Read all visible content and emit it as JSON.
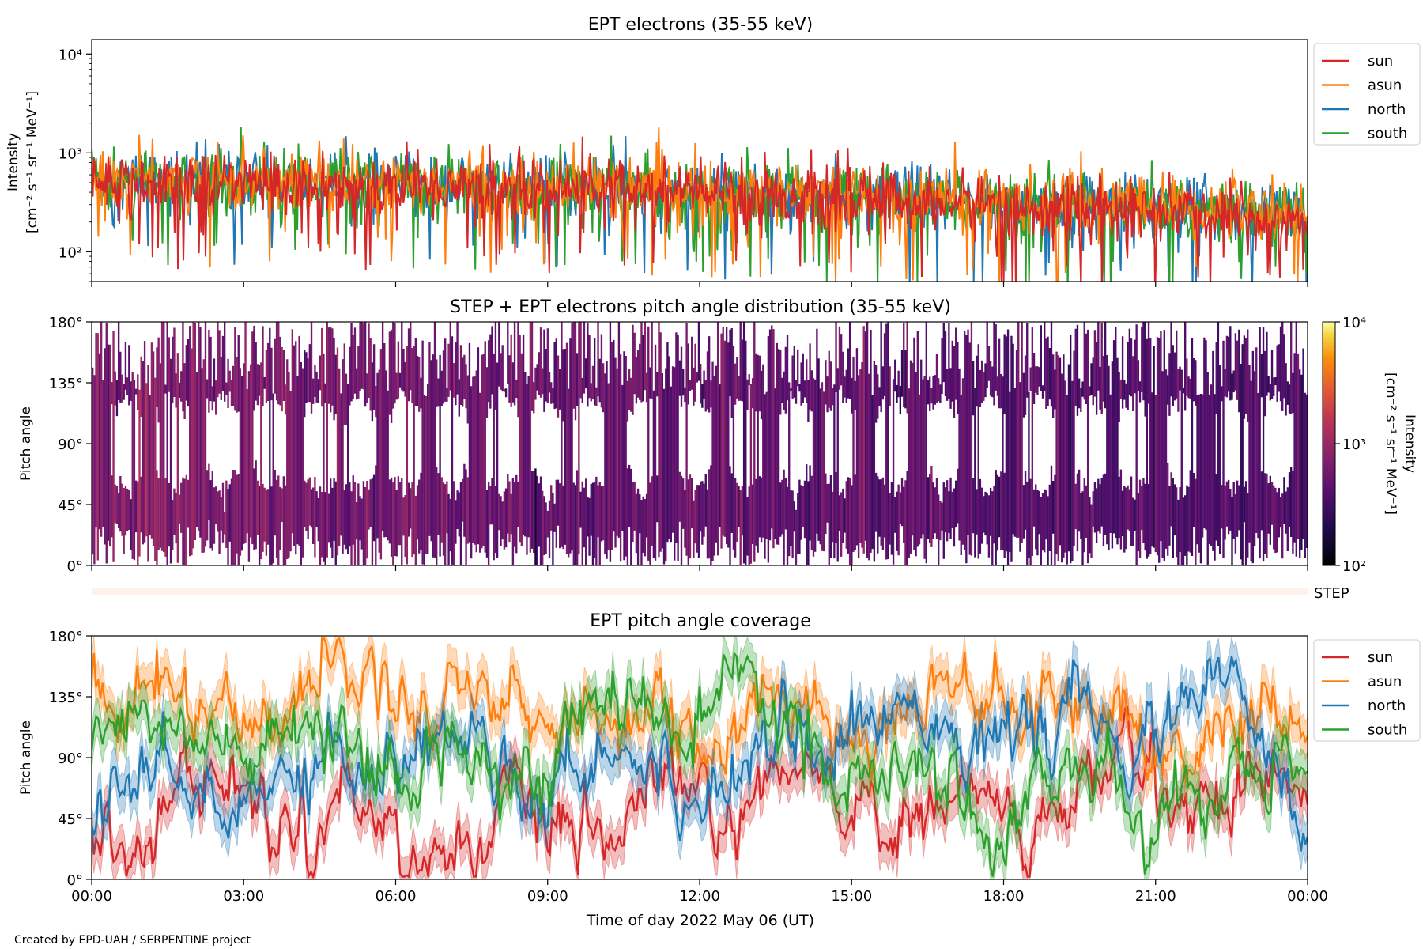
{
  "figure": {
    "xlabel": "Time of day 2022 May 06 (UT)",
    "credit": "Created by EPD-UAH / SERPENTINE project",
    "x_ticks": [
      "00:00",
      "03:00",
      "06:00",
      "09:00",
      "12:00",
      "15:00",
      "18:00",
      "21:00",
      "00:00"
    ]
  },
  "series_colors": {
    "sun": "#d62728",
    "asun": "#ff7f0e",
    "north": "#1f77b4",
    "south": "#2ca02c"
  },
  "chart_data": [
    {
      "type": "line",
      "title": "EPT electrons (35-55 keV)",
      "ylabel": "Intensity",
      "yunit": "[cm⁻² s⁻¹ sr⁻¹ MeV⁻¹]",
      "yscale": "log",
      "ylim": [
        50,
        14000
      ],
      "yticks": [
        {
          "value": 100,
          "label": "10²"
        },
        {
          "value": 1000,
          "label": "10³"
        },
        {
          "value": 10000,
          "label": "10⁴"
        }
      ],
      "xlim_hours": [
        0,
        24
      ],
      "legend": "outside-right-top",
      "series": [
        {
          "name": "sun",
          "x_hours": [
            0,
            2,
            4,
            6,
            8,
            10,
            12,
            14,
            16,
            18,
            20,
            22,
            24
          ],
          "values": [
            520,
            500,
            490,
            470,
            450,
            430,
            400,
            360,
            330,
            300,
            270,
            240,
            210
          ]
        },
        {
          "name": "asun",
          "x_hours": [
            0,
            2,
            4,
            6,
            8,
            10,
            12,
            14,
            16,
            18,
            20,
            22,
            24
          ],
          "values": [
            560,
            540,
            520,
            500,
            480,
            460,
            430,
            390,
            360,
            330,
            300,
            270,
            250
          ]
        },
        {
          "name": "north",
          "x_hours": [
            0,
            2,
            4,
            6,
            8,
            10,
            12,
            14,
            16,
            18,
            20,
            22,
            24
          ],
          "values": [
            540,
            520,
            500,
            480,
            470,
            450,
            420,
            380,
            350,
            320,
            290,
            260,
            240
          ]
        },
        {
          "name": "south",
          "x_hours": [
            0,
            2,
            4,
            6,
            8,
            10,
            12,
            14,
            16,
            18,
            20,
            22,
            24
          ],
          "values": [
            530,
            510,
            500,
            480,
            460,
            440,
            410,
            370,
            340,
            310,
            280,
            250,
            230
          ]
        }
      ],
      "spikes": [
        {
          "series": "north",
          "x_hours": 10.3,
          "value": 1200
        },
        {
          "series": "south",
          "x_hours": 3.4,
          "value": 1300
        }
      ]
    },
    {
      "type": "heatmap",
      "title": "STEP + EPT electrons pitch angle distribution (35-55 keV)",
      "ylabel": "Pitch angle",
      "ylim": [
        0,
        180
      ],
      "yticks": [
        "0°",
        "45°",
        "90°",
        "135°",
        "180°"
      ],
      "colorbar": {
        "label": "Intensity",
        "unit": "[cm⁻² s⁻¹ sr⁻¹ MeV⁻¹]",
        "scale": "log",
        "range": [
          100,
          10000
        ],
        "ticks": [
          "10²",
          "10³",
          "10⁴"
        ]
      },
      "gap_centers_hours": [
        0.7,
        1.6,
        2.6,
        3.5,
        4.5,
        5.3,
        6.2,
        7.1,
        8.1,
        9.0,
        9.8,
        10.9,
        11.9,
        12.9,
        13.9,
        14.8,
        15.8,
        16.8,
        17.7,
        18.7,
        19.7,
        20.6,
        21.5,
        22.5,
        23.4
      ],
      "step_row_label": "STEP"
    },
    {
      "type": "line",
      "title": "EPT pitch angle coverage",
      "ylabel": "Pitch angle",
      "ylim": [
        0,
        180
      ],
      "yticks": [
        "0°",
        "45°",
        "90°",
        "135°",
        "180°"
      ],
      "legend": "outside-right-top",
      "series": [
        {
          "name": "sun",
          "x_hours": [
            0,
            2,
            4,
            6,
            8,
            10,
            12,
            14,
            16,
            18,
            20,
            22,
            24
          ],
          "values": [
            45,
            62,
            58,
            35,
            30,
            40,
            55,
            60,
            50,
            45,
            70,
            75,
            60
          ]
        },
        {
          "name": "asun",
          "x_hours": [
            0,
            2,
            4,
            6,
            8,
            10,
            12,
            14,
            16,
            18,
            20,
            22,
            24
          ],
          "values": [
            145,
            120,
            140,
            150,
            130,
            120,
            110,
            120,
            130,
            140,
            120,
            100,
            115
          ]
        },
        {
          "name": "north",
          "x_hours": [
            0,
            2,
            4,
            6,
            8,
            10,
            12,
            14,
            16,
            18,
            20,
            22,
            24
          ],
          "values": [
            70,
            55,
            80,
            100,
            90,
            85,
            75,
            110,
            120,
            110,
            100,
            135,
            60
          ]
        },
        {
          "name": "south",
          "x_hours": [
            0,
            2,
            4,
            6,
            8,
            10,
            12,
            14,
            16,
            18,
            20,
            22,
            24
          ],
          "values": [
            115,
            110,
            90,
            80,
            95,
            110,
            130,
            105,
            55,
            60,
            70,
            45,
            110
          ]
        }
      ]
    }
  ]
}
